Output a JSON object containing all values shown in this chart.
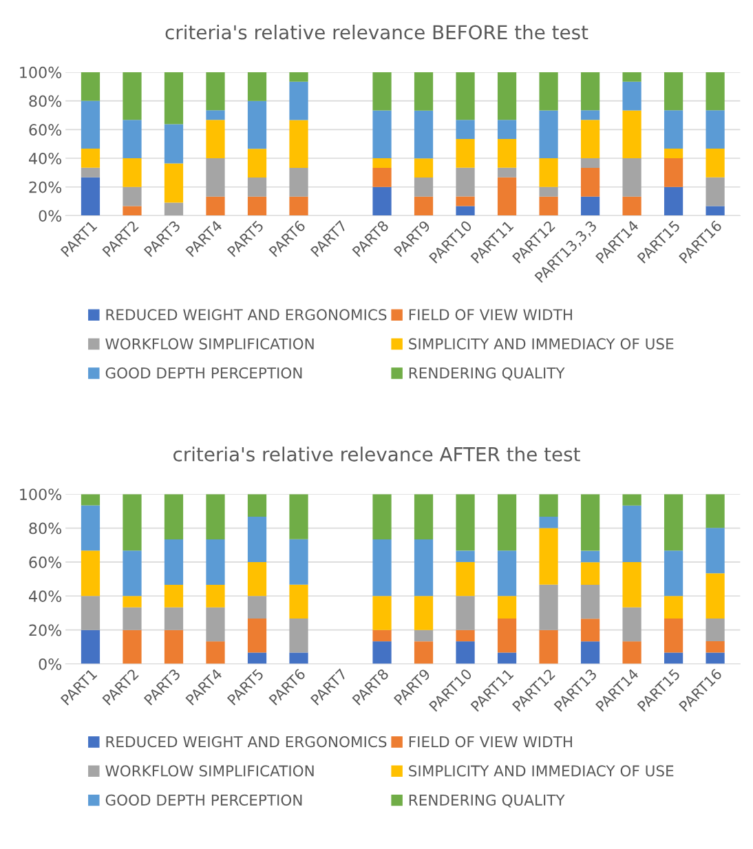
{
  "chart_data": [
    {
      "type": "bar",
      "stacked": true,
      "title": "criteria's relative relevance BEFORE the test",
      "categories": [
        "PART1",
        "PART2",
        "PART3",
        "PART4",
        "PART5",
        "PART6",
        "PART7",
        "PART8",
        "PART9",
        "PART10",
        "PART11",
        "PART12",
        "PART13,3,3",
        "PART14",
        "PART15",
        "PART16"
      ],
      "ylim": [
        0,
        100
      ],
      "yticks": [
        {
          "value": 0,
          "label": "0%"
        },
        {
          "value": 20,
          "label": "20%"
        },
        {
          "value": 40,
          "label": "40%"
        },
        {
          "value": 60,
          "label": "60%"
        },
        {
          "value": 80,
          "label": "80%"
        },
        {
          "value": 100,
          "label": "100%"
        }
      ],
      "grid": "y",
      "legend": "bottom",
      "series": [
        {
          "name": "REDUCED WEIGHT AND ERGONOMICS",
          "color": "#4472c4",
          "values": [
            26.7,
            0,
            0,
            0,
            0,
            0,
            0,
            20,
            0,
            6.7,
            0,
            0,
            13.3,
            0,
            20,
            6.7
          ]
        },
        {
          "name": "FIELD OF VIEW WIDTH",
          "color": "#ed7d31",
          "values": [
            0,
            6.7,
            0,
            13.3,
            13.3,
            13.3,
            0,
            13.3,
            13.3,
            6.7,
            26.7,
            13.3,
            20,
            13.3,
            20,
            0
          ]
        },
        {
          "name": "WORKFLOW SIMPLIFICATION",
          "color": "#a5a5a5",
          "values": [
            6.7,
            13.3,
            9.1,
            26.7,
            13.3,
            20,
            0,
            0,
            13.3,
            20,
            6.7,
            6.7,
            6.7,
            26.7,
            0,
            20
          ]
        },
        {
          "name": "SIMPLICITY AND IMMEDIACY OF USE",
          "color": "#ffc000",
          "values": [
            13.3,
            20,
            27.3,
            26.7,
            20,
            33.3,
            0,
            6.7,
            13.3,
            20,
            20,
            20,
            26.7,
            33.3,
            6.7,
            20
          ]
        },
        {
          "name": "GOOD DEPTH PERCEPTION",
          "color": "#5b9bd5",
          "values": [
            33.3,
            26.7,
            27.3,
            6.7,
            33.3,
            26.7,
            0,
            33.3,
            33.3,
            13.3,
            13.3,
            33.3,
            6.7,
            20,
            26.7,
            26.7
          ]
        },
        {
          "name": "RENDERING QUALITY",
          "color": "#70ad47",
          "values": [
            20,
            33.3,
            36.3,
            26.6,
            20.1,
            6.7,
            0,
            26.7,
            26.8,
            33.3,
            33.3,
            26.7,
            26.6,
            6.7,
            26.6,
            26.6
          ]
        }
      ]
    },
    {
      "type": "bar",
      "stacked": true,
      "title": "criteria's relative relevance AFTER the test",
      "categories": [
        "PART1",
        "PART2",
        "PART3",
        "PART4",
        "PART5",
        "PART6",
        "PART7",
        "PART8",
        "PART9",
        "PART10",
        "PART11",
        "PART12",
        "PART13",
        "PART14",
        "PART15",
        "PART16"
      ],
      "ylim": [
        0,
        100
      ],
      "yticks": [
        {
          "value": 0,
          "label": "0%"
        },
        {
          "value": 20,
          "label": "20%"
        },
        {
          "value": 40,
          "label": "40%"
        },
        {
          "value": 60,
          "label": "60%"
        },
        {
          "value": 80,
          "label": "80%"
        },
        {
          "value": 100,
          "label": "100%"
        }
      ],
      "grid": "y",
      "legend": "bottom",
      "series": [
        {
          "name": "REDUCED WEIGHT AND ERGONOMICS",
          "color": "#4472c4",
          "values": [
            20,
            0,
            0,
            0,
            6.7,
            6.7,
            0,
            13.3,
            0,
            13.3,
            6.7,
            0,
            13.3,
            0,
            6.7,
            6.7
          ]
        },
        {
          "name": "FIELD OF VIEW WIDTH",
          "color": "#ed7d31",
          "values": [
            0,
            20,
            20,
            13.3,
            20,
            0,
            0,
            6.7,
            13.3,
            6.7,
            20,
            20,
            13.3,
            13.3,
            20,
            6.7
          ]
        },
        {
          "name": "WORKFLOW SIMPLIFICATION",
          "color": "#a5a5a5",
          "values": [
            20,
            13.3,
            13.3,
            20,
            13.3,
            20,
            0,
            0,
            6.7,
            20,
            0,
            26.7,
            20,
            20,
            0,
            13.3
          ]
        },
        {
          "name": "SIMPLICITY AND IMMEDIACY OF USE",
          "color": "#ffc000",
          "values": [
            26.7,
            6.7,
            13.3,
            13.3,
            20,
            20,
            0,
            20,
            20,
            20,
            13.3,
            33.3,
            13.3,
            26.7,
            13.3,
            26.7
          ]
        },
        {
          "name": "GOOD DEPTH PERCEPTION",
          "color": "#5b9bd5",
          "values": [
            26.7,
            26.7,
            26.7,
            26.7,
            26.7,
            26.7,
            0,
            33.3,
            33.3,
            6.7,
            26.7,
            6.7,
            6.7,
            33.3,
            26.7,
            26.7
          ]
        },
        {
          "name": "RENDERING QUALITY",
          "color": "#70ad47",
          "values": [
            6.6,
            33.3,
            26.7,
            26.7,
            13.3,
            26.6,
            0,
            26.7,
            26.7,
            33.3,
            33.3,
            13.3,
            33.4,
            6.7,
            33.3,
            19.9
          ]
        }
      ]
    }
  ]
}
